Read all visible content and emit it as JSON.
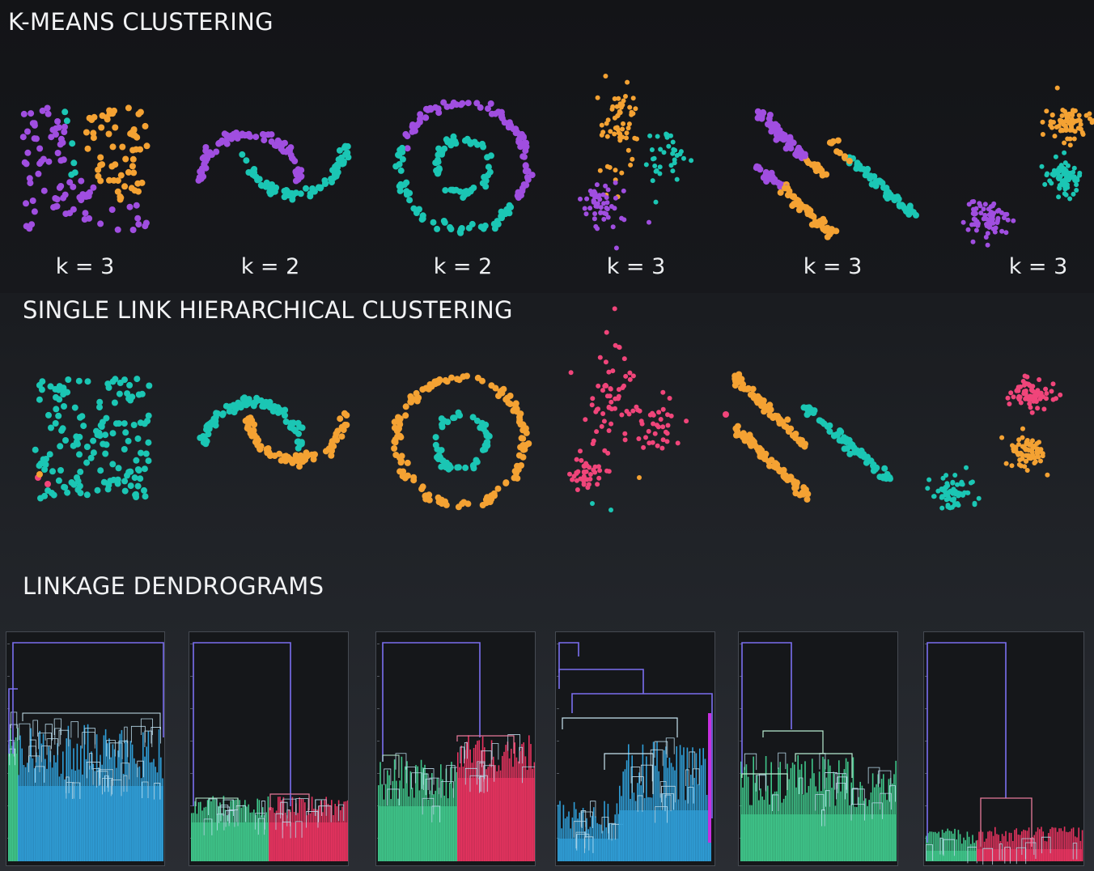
{
  "sections": {
    "kmeans_title": "K-MEANS CLUSTERING",
    "single_link_title": "SINGLE LINK HIERARCHICAL CLUSTERING",
    "dendrograms_title": "LINKAGE DENDROGRAMS"
  },
  "colors": {
    "teal": "#1bc6b4",
    "purple": "#a04ee0",
    "orange": "#f4a233",
    "pink": "#f0457a",
    "blue": "#2f9ed8",
    "green": "#3fc68a",
    "red": "#e6335f",
    "violet": "#7b6ff0"
  },
  "kmeans_panels": [
    {
      "dataset": "uniform-square",
      "k_label": "k = 3"
    },
    {
      "dataset": "two-moons",
      "k_label": "k = 2"
    },
    {
      "dataset": "concentric-circles",
      "k_label": "k = 2"
    },
    {
      "dataset": "scattered-clusters",
      "k_label": "k = 3"
    },
    {
      "dataset": "parallel-lines",
      "k_label": "k = 3"
    },
    {
      "dataset": "three-blobs",
      "k_label": "k = 3"
    }
  ],
  "single_link_panels": [
    {
      "dataset": "uniform-square"
    },
    {
      "dataset": "two-moons"
    },
    {
      "dataset": "concentric-circles"
    },
    {
      "dataset": "scattered-clusters"
    },
    {
      "dataset": "parallel-lines"
    },
    {
      "dataset": "three-blobs"
    }
  ],
  "dendrogram_panels": [
    {
      "dataset": "uniform-square",
      "cluster_colors": [
        "green",
        "blue"
      ]
    },
    {
      "dataset": "two-moons",
      "cluster_colors": [
        "green",
        "red"
      ]
    },
    {
      "dataset": "concentric-circles",
      "cluster_colors": [
        "green",
        "red"
      ]
    },
    {
      "dataset": "scattered-clusters",
      "cluster_colors": [
        "blue"
      ]
    },
    {
      "dataset": "parallel-lines",
      "cluster_colors": [
        "green"
      ]
    },
    {
      "dataset": "three-blobs",
      "cluster_colors": [
        "green",
        "red"
      ]
    }
  ]
}
